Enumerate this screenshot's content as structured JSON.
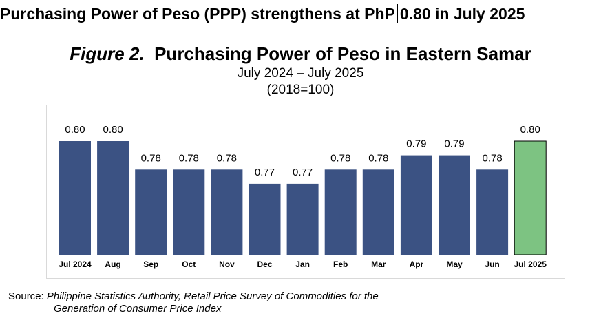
{
  "headline": {
    "part1": "Purchasing Power of Peso (PPP) strengthens at PhP",
    "part2": "0.80 in July 2025"
  },
  "figure": {
    "number": "Figure 2.",
    "title": "Purchasing Power of Peso in Eastern Samar",
    "subtitle1": "July 2024 – July 2025",
    "subtitle2": "(2018=100)"
  },
  "source": {
    "label": "Source:",
    "line1": "Philippine Statistics Authority, Retail Price Survey of Commodities for the",
    "line2": "Generation of Consumer Price Index"
  },
  "chart_data": {
    "type": "bar",
    "categories": [
      "Jul 2024",
      "Aug",
      "Sep",
      "Oct",
      "Nov",
      "Dec",
      "Jan",
      "Feb",
      "Mar",
      "Apr",
      "May",
      "Jun",
      "Jul 2025"
    ],
    "values": [
      0.8,
      0.8,
      0.78,
      0.78,
      0.78,
      0.77,
      0.77,
      0.78,
      0.78,
      0.79,
      0.79,
      0.78,
      0.8
    ],
    "labels": [
      "0.80",
      "0.80",
      "0.78",
      "0.78",
      "0.78",
      "0.77",
      "0.77",
      "0.78",
      "0.78",
      "0.79",
      "0.79",
      "0.78",
      "0.80"
    ],
    "ylim": [
      0.72,
      0.8
    ],
    "grid": false,
    "legend": "none",
    "colors": {
      "default": "#3B5283",
      "highlight": "#7DC382",
      "highlight_border": "#000000"
    },
    "highlight_index": 12
  }
}
